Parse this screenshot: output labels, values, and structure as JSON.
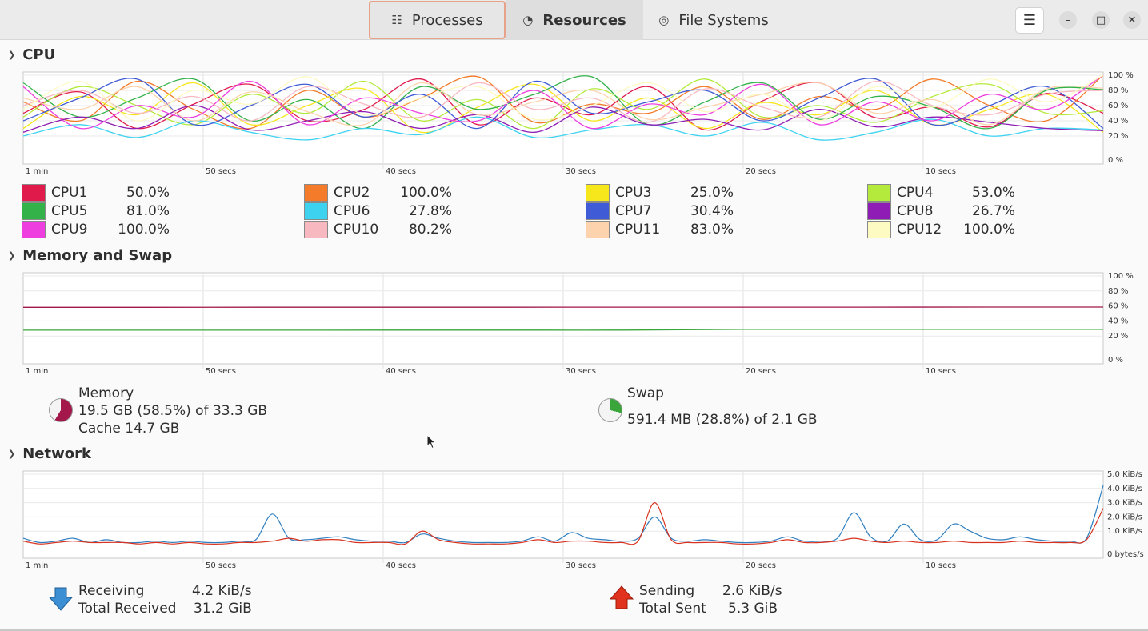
{
  "header": {
    "tabs": [
      {
        "label": "Processes",
        "icon": "list-icon"
      },
      {
        "label": "Resources",
        "icon": "gauge-icon"
      },
      {
        "label": "File Systems",
        "icon": "disk-icon"
      }
    ],
    "active_tab": "Resources",
    "window_buttons": [
      "menu-icon",
      "minimize-icon",
      "maximize-icon",
      "close-icon"
    ]
  },
  "x_ticks": [
    "1 min",
    "50 secs",
    "40 secs",
    "30 secs",
    "20 secs",
    "10 secs"
  ],
  "percent_ticks": [
    "100 %",
    "80 %",
    "60 %",
    "40 %",
    "20 %",
    "0 %"
  ],
  "cpu": {
    "title": "CPU",
    "cores": [
      {
        "name": "CPU1",
        "value": "50.0%",
        "color": "#e01b4c"
      },
      {
        "name": "CPU2",
        "value": "100.0%",
        "color": "#f37b29"
      },
      {
        "name": "CPU3",
        "value": "25.0%",
        "color": "#f6e71d"
      },
      {
        "name": "CPU4",
        "value": "53.0%",
        "color": "#b3ea3c"
      },
      {
        "name": "CPU5",
        "value": "81.0%",
        "color": "#33b24a"
      },
      {
        "name": "CPU6",
        "value": "27.8%",
        "color": "#3dd2f0"
      },
      {
        "name": "CPU7",
        "value": "30.4%",
        "color": "#3f5bd6"
      },
      {
        "name": "CPU8",
        "value": "26.7%",
        "color": "#8e1cb5"
      },
      {
        "name": "CPU9",
        "value": "100.0%",
        "color": "#ee3ee0"
      },
      {
        "name": "CPU10",
        "value": "80.2%",
        "color": "#f7b8c0"
      },
      {
        "name": "CPU11",
        "value": "83.0%",
        "color": "#fdd3ad"
      },
      {
        "name": "CPU12",
        "value": "100.0%",
        "color": "#fdfac2"
      }
    ]
  },
  "memory_swap": {
    "title": "Memory and Swap",
    "memory": {
      "label": "Memory",
      "usage": "19.5 GB (58.5%) of 33.3 GB",
      "cache": "Cache 14.7 GB",
      "fraction": 0.585,
      "color": "#a3174a"
    },
    "swap": {
      "label": "Swap",
      "usage": "591.4 MB (28.8%) of 2.1 GB",
      "fraction": 0.288,
      "color": "#3aa53a"
    }
  },
  "network": {
    "title": "Network",
    "y_ticks": [
      "5.0 KiB/s",
      "4.0 KiB/s",
      "3.0 KiB/s",
      "2.0 KiB/s",
      "1.0 KiB/s",
      "0 bytes/s"
    ],
    "receiving": {
      "label": "Receiving",
      "rate": "4.2 KiB/s",
      "total_label": "Total Received",
      "total": "31.2 GiB",
      "color": "#2f7fc1"
    },
    "sending": {
      "label": "Sending",
      "rate": "2.6 KiB/s",
      "total_label": "Total Sent",
      "total": "5.3 GiB",
      "color": "#d8321e"
    }
  },
  "chart_data": [
    {
      "type": "line",
      "title": "CPU",
      "ylim": [
        0,
        100
      ],
      "series": [
        {
          "name": "CPU1",
          "values": [
            50,
            78,
            30,
            62,
            88,
            40,
            55,
            95,
            35,
            70,
            48,
            85,
            28,
            66,
            90,
            44,
            58,
            32,
            76,
            50
          ]
        },
        {
          "name": "CPU2",
          "values": [
            65,
            40,
            92,
            55,
            30,
            80,
            45,
            70,
            98,
            38,
            62,
            50,
            85,
            42,
            72,
            55,
            95,
            60,
            40,
            100
          ]
        },
        {
          "name": "CPU3",
          "values": [
            30,
            72,
            48,
            90,
            35,
            60,
            82,
            25,
            58,
            88,
            40,
            70,
            30,
            64,
            48,
            80,
            35,
            55,
            75,
            25
          ]
        },
        {
          "name": "CPU4",
          "values": [
            45,
            85,
            60,
            35,
            75,
            50,
            92,
            40,
            68,
            30,
            82,
            55,
            95,
            45,
            60,
            38,
            72,
            88,
            50,
            53
          ]
        },
        {
          "name": "CPU5",
          "values": [
            90,
            45,
            70,
            95,
            40,
            68,
            30,
            85,
            55,
            75,
            98,
            35,
            65,
            90,
            42,
            72,
            58,
            30,
            80,
            81
          ]
        },
        {
          "name": "CPU6",
          "values": [
            20,
            35,
            18,
            40,
            25,
            15,
            30,
            22,
            45,
            18,
            28,
            35,
            20,
            38,
            15,
            25,
            42,
            20,
            30,
            28
          ]
        },
        {
          "name": "CPU7",
          "values": [
            40,
            70,
            95,
            35,
            60,
            88,
            45,
            75,
            30,
            92,
            50,
            65,
            80,
            40,
            70,
            95,
            35,
            60,
            85,
            30
          ]
        },
        {
          "name": "CPU8",
          "values": [
            25,
            45,
            30,
            60,
            28,
            40,
            52,
            30,
            48,
            25,
            58,
            35,
            42,
            28,
            55,
            32,
            45,
            38,
            30,
            27
          ]
        },
        {
          "name": "CPU9",
          "values": [
            85,
            30,
            60,
            45,
            92,
            35,
            70,
            50,
            40,
            80,
            30,
            62,
            48,
            88,
            35,
            65,
            40,
            75,
            55,
            100
          ]
        },
        {
          "name": "CPU10",
          "values": [
            60,
            80,
            50,
            72,
            40,
            85,
            62,
            45,
            90,
            55,
            70,
            38,
            82,
            58,
            45,
            92,
            60,
            48,
            75,
            80
          ]
        },
        {
          "name": "CPU11",
          "values": [
            70,
            55,
            85,
            40,
            78,
            52,
            35,
            90,
            48,
            65,
            80,
            42,
            58,
            75,
            90,
            50,
            68,
            35,
            82,
            83
          ]
        },
        {
          "name": "CPU12",
          "values": [
            55,
            92,
            40,
            80,
            62,
            98,
            48,
            70,
            85,
            42,
            60,
            90,
            52,
            75,
            40,
            85,
            58,
            95,
            65,
            100
          ]
        }
      ]
    },
    {
      "type": "line",
      "title": "Memory and Swap",
      "ylim": [
        0,
        100
      ],
      "series": [
        {
          "name": "Memory",
          "values": [
            58.2,
            58.2,
            58.3,
            58.3,
            58.3,
            58.4,
            58.4,
            58.4,
            58.5,
            58.5
          ]
        },
        {
          "name": "Swap",
          "values": [
            27.8,
            27.8,
            27.8,
            27.9,
            27.9,
            27.9,
            28.8,
            28.8,
            28.8,
            28.8
          ]
        }
      ]
    },
    {
      "type": "line",
      "title": "Network",
      "ylim": [
        0,
        5.0
      ],
      "series": [
        {
          "name": "Receiving",
          "values": [
            0.5,
            0.2,
            0.3,
            0.5,
            0.2,
            0.4,
            0.2,
            0.2,
            0.3,
            0.2,
            0.3,
            0.2,
            0.2,
            0.3,
            0.4,
            2.2,
            0.5,
            0.4,
            0.5,
            0.6,
            0.4,
            0.3,
            0.3,
            0.2,
            0.8,
            0.5,
            0.3,
            0.2,
            0.2,
            0.2,
            0.3,
            0.6,
            0.3,
            0.9,
            0.5,
            0.4,
            0.3,
            0.5,
            2.0,
            0.5,
            0.3,
            0.4,
            0.3,
            0.2,
            0.2,
            0.3,
            0.6,
            0.3,
            0.3,
            0.5,
            2.3,
            0.6,
            0.3,
            1.5,
            0.4,
            0.4,
            1.5,
            1.0,
            0.5,
            0.4,
            0.6,
            0.4,
            0.3,
            0.3,
            0.5,
            4.2
          ]
        },
        {
          "name": "Sending",
          "values": [
            0.3,
            0.1,
            0.2,
            0.3,
            0.2,
            0.2,
            0.2,
            0.1,
            0.2,
            0.1,
            0.2,
            0.1,
            0.1,
            0.2,
            0.2,
            0.3,
            0.5,
            0.3,
            0.4,
            0.4,
            0.2,
            0.2,
            0.2,
            0.1,
            1.0,
            0.4,
            0.2,
            0.1,
            0.1,
            0.1,
            0.2,
            0.4,
            0.2,
            0.3,
            0.3,
            0.2,
            0.2,
            0.3,
            3.0,
            0.4,
            0.2,
            0.2,
            0.2,
            0.1,
            0.1,
            0.2,
            0.4,
            0.2,
            0.2,
            0.3,
            0.5,
            0.3,
            0.2,
            0.3,
            0.2,
            0.2,
            0.3,
            0.2,
            0.2,
            0.2,
            0.3,
            0.2,
            0.2,
            0.2,
            0.4,
            2.6
          ]
        }
      ]
    }
  ]
}
